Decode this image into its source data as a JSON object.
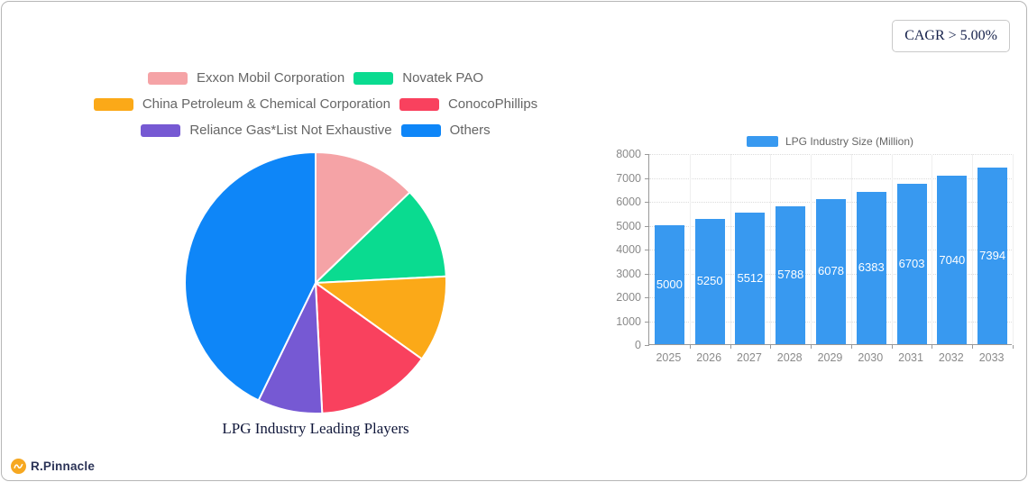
{
  "cagr_badge": {
    "label": "CAGR > 5.00%"
  },
  "logo": {
    "brand": "R.Pinnacle",
    "icon_color": "#F6A821",
    "text_color": "#2B3357"
  },
  "chart_data": [
    {
      "type": "pie",
      "title": "LPG Industry Leading Players",
      "labels": [
        "Exxon Mobil Corporation",
        "Novatek PAO",
        "China Petroleum & Chemical Corporation",
        "ConocoPhillips",
        "Reliance Gas*List Not Exhaustive",
        "Others"
      ],
      "values": [
        12.8,
        11.4,
        10.7,
        14.3,
        8.0,
        42.8
      ],
      "unit": "percent (estimated from slice angles)",
      "colors": [
        "#F5A3A6",
        "#0ADB90",
        "#FBA918",
        "#F9415E",
        "#7659D3",
        "#0E86F8"
      ],
      "legend_rows": [
        [
          0,
          1
        ],
        [
          2,
          3
        ],
        [
          4,
          5
        ]
      ],
      "layout": {
        "start": "top",
        "direction": "clockwise",
        "slice_border_color": "#FFFFFF",
        "legend_position": "top"
      }
    },
    {
      "type": "bar",
      "legend": "LPG Industry Size (Million)",
      "categories": [
        "2025",
        "2026",
        "2027",
        "2028",
        "2029",
        "2030",
        "2031",
        "2032",
        "2033"
      ],
      "values": [
        5000,
        5250,
        5512,
        5788,
        6078,
        6383,
        6703,
        7040,
        7394
      ],
      "bar_color": "#3899F0",
      "value_label_color": "#FFFFFF",
      "ylim": [
        0,
        8000
      ],
      "ytick_step": 1000,
      "grid": true,
      "layout": {
        "legend_position": "top",
        "value_labels": "inside-middle"
      }
    }
  ]
}
